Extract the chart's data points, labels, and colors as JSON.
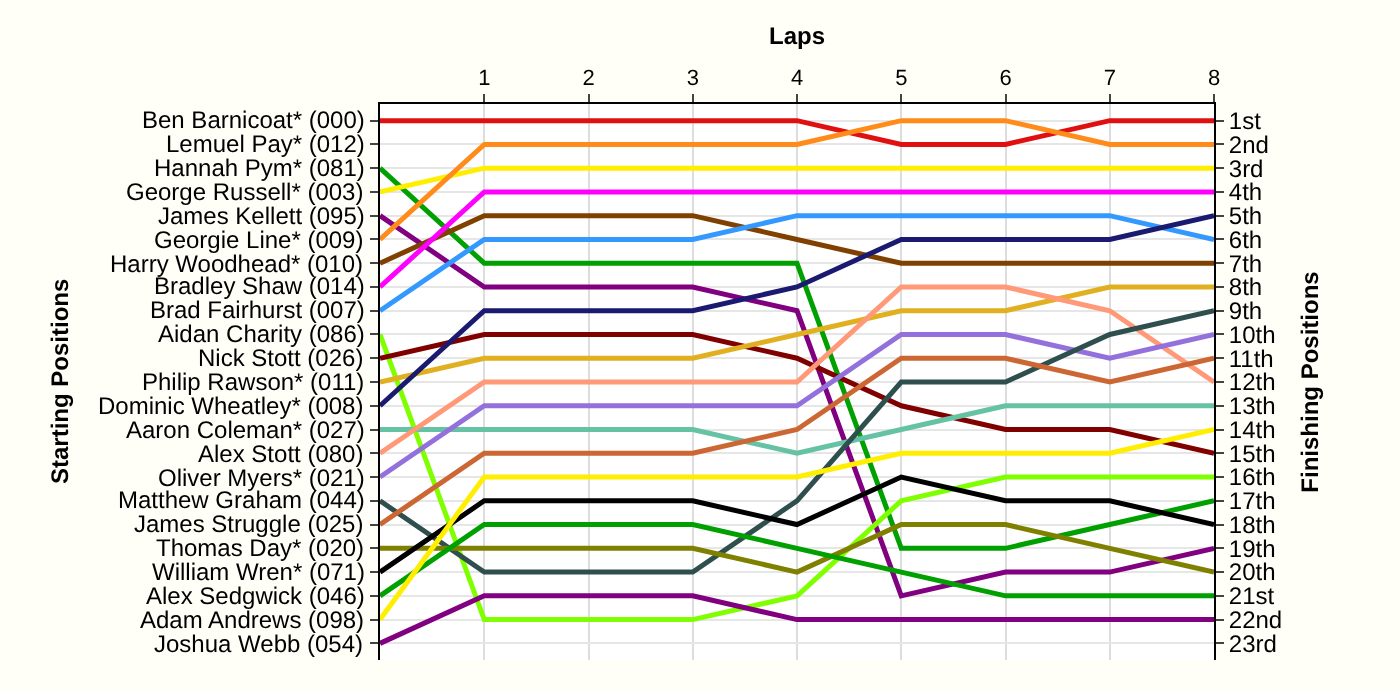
{
  "chart_data": {
    "type": "line",
    "xlabel": "Laps",
    "ylabel": "Finishing Positions",
    "x": [
      0,
      1,
      2,
      3,
      4,
      5,
      6,
      7,
      8
    ],
    "xlim": [
      0,
      8
    ],
    "xticks": [
      1,
      2,
      3,
      4,
      5,
      6,
      7,
      8
    ],
    "ylim": [
      23.7,
      0.3
    ],
    "yticks": [
      {
        "value": 1,
        "label": "1st"
      },
      {
        "value": 2,
        "label": "2nd"
      },
      {
        "value": 3,
        "label": "3rd"
      },
      {
        "value": 4,
        "label": "4th"
      },
      {
        "value": 5,
        "label": "5th"
      },
      {
        "value": 6,
        "label": "6th"
      },
      {
        "value": 7,
        "label": "7th"
      },
      {
        "value": 8,
        "label": "8th"
      },
      {
        "value": 9,
        "label": "9th"
      },
      {
        "value": 10,
        "label": "10th"
      },
      {
        "value": 11,
        "label": "11th"
      },
      {
        "value": 12,
        "label": "12th"
      },
      {
        "value": 13,
        "label": "13th"
      },
      {
        "value": 14,
        "label": "14th"
      },
      {
        "value": 15,
        "label": "15th"
      },
      {
        "value": 16,
        "label": "16th"
      },
      {
        "value": 17,
        "label": "17th"
      },
      {
        "value": 18,
        "label": "18th"
      },
      {
        "value": 19,
        "label": "19th"
      },
      {
        "value": 20,
        "label": "20th"
      },
      {
        "value": 21,
        "label": "21st"
      },
      {
        "value": 22,
        "label": "22nd"
      },
      {
        "value": 23,
        "label": "23rd"
      }
    ],
    "annotations": [
      "Lemuel Pay* (012)",
      "Starting Positions"
    ],
    "grid": true,
    "legend": false,
    "marker": "none",
    "line_style": "solid",
    "series": [
      {
        "name": "Ben Barnicoat* (000)",
        "color": "#e01010",
        "values": [
          1,
          1,
          1,
          1,
          1,
          2,
          2,
          1,
          1
        ]
      },
      {
        "name": "Hannah Pym* (081)",
        "color": "#00a000",
        "values": [
          3,
          7,
          7,
          7,
          7,
          19,
          19,
          18,
          17
        ]
      },
      {
        "name": "George Russell* (003)",
        "color": "#ffee00",
        "values": [
          4,
          3,
          3,
          3,
          3,
          3,
          3,
          3,
          3
        ]
      },
      {
        "name": "James Kellett (095)",
        "color": "#800080",
        "values": [
          5,
          8,
          8,
          8,
          9,
          21,
          20,
          20,
          19
        ]
      },
      {
        "name": "Georgie Line* (009)",
        "color": "#ff8c1a",
        "values": [
          6,
          2,
          2,
          2,
          2,
          1,
          1,
          2,
          2
        ]
      },
      {
        "name": "Harry Woodhead* (010)",
        "color": "#804000",
        "values": [
          7,
          5,
          5,
          5,
          6,
          7,
          7,
          7,
          7
        ]
      },
      {
        "name": "Bradley Shaw (014)",
        "color": "#ff00ff",
        "values": [
          8,
          4,
          4,
          4,
          4,
          4,
          4,
          4,
          4
        ]
      },
      {
        "name": "Brad Fairhurst (007)",
        "color": "#3399ff",
        "values": [
          9,
          6,
          6,
          6,
          5,
          5,
          5,
          5,
          6
        ]
      },
      {
        "name": "Aidan Charity (086)",
        "color": "#80ff00",
        "values": [
          10,
          22,
          22,
          22,
          21,
          17,
          16,
          16,
          16
        ]
      },
      {
        "name": "Nick Stott (026)",
        "color": "#800000",
        "values": [
          11,
          10,
          10,
          10,
          11,
          13,
          14,
          14,
          15
        ]
      },
      {
        "name": "Philip Rawson* (011)",
        "color": "#e0b020",
        "values": [
          12,
          11,
          11,
          11,
          10,
          9,
          9,
          8,
          8
        ]
      },
      {
        "name": "Dominic Wheatley* (008)",
        "color": "#1a1a70",
        "values": [
          13,
          9,
          9,
          9,
          8,
          6,
          6,
          6,
          5
        ]
      },
      {
        "name": "Aaron Coleman* (027)",
        "color": "#66c2a5",
        "values": [
          14,
          14,
          14,
          14,
          15,
          14,
          13,
          13,
          13
        ]
      },
      {
        "name": "Alex Stott (080)",
        "color": "#ff9977",
        "values": [
          15,
          12,
          12,
          12,
          12,
          8,
          8,
          9,
          12
        ]
      },
      {
        "name": "Oliver Myers* (021)",
        "color": "#9370db",
        "values": [
          16,
          13,
          13,
          13,
          13,
          10,
          10,
          11,
          10
        ]
      },
      {
        "name": "Matthew Graham (044)",
        "color": "#2f4f4f",
        "values": [
          17,
          20,
          20,
          20,
          17,
          12,
          12,
          10,
          9
        ]
      },
      {
        "name": "James Struggle (025)",
        "color": "#cc6633",
        "values": [
          18,
          15,
          15,
          15,
          14,
          11,
          11,
          12,
          11
        ]
      },
      {
        "name": "Thomas Day* (020)",
        "color": "#808000",
        "values": [
          19,
          19,
          19,
          19,
          20,
          18,
          18,
          19,
          20
        ]
      },
      {
        "name": "William Wren* (071)",
        "color": "#000000",
        "values": [
          20,
          17,
          17,
          17,
          18,
          16,
          17,
          17,
          18
        ]
      },
      {
        "name": "Alex Sedgwick (046)",
        "color": "#00a000",
        "values": [
          21,
          18,
          18,
          18,
          19,
          20,
          21,
          21,
          21
        ]
      },
      {
        "name": "Adam Andrews (098)",
        "color": "#ffee00",
        "values": [
          22,
          16,
          16,
          16,
          16,
          15,
          15,
          15,
          14
        ]
      },
      {
        "name": "Joshua Webb (054)",
        "color": "#800080",
        "values": [
          23,
          21,
          21,
          21,
          22,
          22,
          22,
          22,
          22
        ]
      }
    ]
  }
}
